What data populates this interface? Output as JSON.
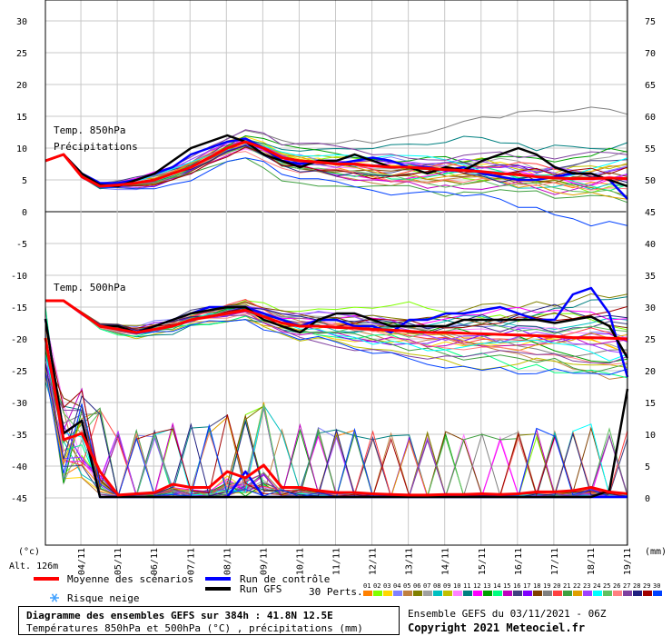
{
  "chart_data": {
    "type": "line",
    "left_axis_ticks": [
      "30",
      "25",
      "20",
      "15",
      "10",
      "5",
      "0",
      "-5",
      "-10",
      "-15",
      "-20",
      "-25",
      "-30",
      "-35",
      "-40",
      "-45"
    ],
    "right_axis_ticks": [
      "75",
      "70",
      "65",
      "60",
      "55",
      "50",
      "45",
      "40",
      "35",
      "30",
      "25",
      "20",
      "15",
      "10",
      "5",
      "0"
    ],
    "left_unit": "(°c)",
    "right_unit": "(mm)",
    "altitude": "Alt. 126m",
    "x_ticks": [
      "04/11",
      "05/11",
      "06/11",
      "07/11",
      "08/11",
      "09/11",
      "10/11",
      "11/11",
      "12/11",
      "13/11",
      "14/11",
      "15/11",
      "16/11",
      "17/11",
      "18/11",
      "19/11"
    ],
    "label_t850": "Temp. 850hPa",
    "label_precip": "Précipitations",
    "label_t500": "Temp. 500hPa",
    "ylim": [
      -45,
      30
    ],
    "x": [
      0,
      12,
      24,
      36,
      48,
      60,
      72,
      84,
      96,
      108,
      120,
      132,
      144,
      156,
      168,
      180,
      192,
      204,
      216,
      228,
      240,
      252,
      264,
      276,
      288,
      300,
      312,
      324,
      336,
      348,
      360,
      372,
      384
    ],
    "series": [
      {
        "name": "Moyenne des scénarios",
        "color": "#ff0000",
        "group": "t850",
        "values": [
          8,
          9,
          5.5,
          4,
          4.2,
          4.5,
          5,
          6,
          7,
          8.5,
          10,
          11,
          10,
          8.5,
          8,
          7.8,
          7.5,
          7.5,
          7.2,
          7,
          7,
          6.8,
          6.6,
          6.5,
          6.3,
          6,
          5.8,
          5.5,
          5.3,
          5.2,
          5.2,
          5.3,
          5.2
        ]
      },
      {
        "name": "Run de contrôle",
        "color": "#0000ff",
        "group": "t850",
        "values": [
          8,
          9,
          6,
          4.5,
          4.5,
          5,
          6,
          7,
          9,
          10,
          11,
          11.5,
          10,
          8,
          7.5,
          8,
          7.5,
          8,
          8.5,
          8,
          7,
          7,
          6.5,
          7,
          6,
          5.5,
          5,
          5,
          5.5,
          6,
          6,
          5,
          2
        ]
      },
      {
        "name": "Run GFS",
        "color": "#000000",
        "group": "t850",
        "values": [
          8,
          9,
          6,
          4.2,
          4,
          5,
          6,
          8,
          10,
          11,
          12,
          11,
          9,
          8,
          7,
          8,
          8,
          9,
          8,
          7,
          7,
          6,
          7,
          6.5,
          8,
          9,
          10,
          9,
          7,
          6,
          6,
          5,
          4
        ]
      },
      {
        "name": "Moyenne des scénarios",
        "color": "#ff0000",
        "group": "t500",
        "values": [
          -14,
          -14,
          -16,
          -18,
          -18.5,
          -19,
          -18.5,
          -18,
          -17,
          -16.5,
          -16,
          -15.5,
          -16.5,
          -17.5,
          -18,
          -18,
          -18.2,
          -18.3,
          -18.5,
          -18.6,
          -18.8,
          -19,
          -19,
          -19.1,
          -19.2,
          -19.3,
          -19.4,
          -19.5,
          -19.6,
          -19.8,
          -19.8,
          -19.9,
          -20
        ]
      },
      {
        "name": "Run de contrôle",
        "color": "#0000ff",
        "group": "t500",
        "values": [
          -14,
          -14,
          -16,
          -18,
          -18.5,
          -19,
          -18,
          -17,
          -16,
          -15,
          -15,
          -15,
          -16,
          -17,
          -18,
          -17,
          -17,
          -18,
          -18,
          -19,
          -17,
          -17,
          -16,
          -16,
          -15.5,
          -15,
          -16,
          -17,
          -17,
          -13,
          -12,
          -16,
          -26
        ]
      },
      {
        "name": "Run GFS",
        "color": "#000000",
        "group": "t500",
        "values": [
          -14,
          -14,
          -16,
          -18,
          -18,
          -19,
          -18,
          -17,
          -16,
          -15.5,
          -15,
          -15,
          -17,
          -18,
          -19,
          -17,
          -16,
          -16,
          -17,
          -18,
          -18,
          -18,
          -18,
          -17,
          -17,
          -17,
          -17,
          -17,
          -17.5,
          -17,
          -16.5,
          -18,
          -23
        ]
      },
      {
        "name": "Moyenne des scénarios",
        "color": "#ff0000",
        "group": "precip_mm",
        "values": [
          25,
          9,
          10,
          4,
          0.3,
          0.5,
          0.7,
          2,
          1.5,
          1.5,
          4,
          3,
          5,
          1.5,
          1.5,
          1,
          0.7,
          0.7,
          0.5,
          0.4,
          0.3,
          0.3,
          0.4,
          0.4,
          0.5,
          0.4,
          0.5,
          0.8,
          0.8,
          1,
          1.5,
          0.8,
          0.5
        ]
      },
      {
        "name": "Run de contrôle",
        "color": "#0000ff",
        "group": "precip_mm",
        "values": [
          28,
          10,
          12,
          0,
          0,
          0,
          0,
          0,
          0,
          0,
          0,
          4,
          0,
          0,
          0,
          0,
          0,
          0,
          0,
          0,
          0,
          0,
          0,
          0,
          0,
          0,
          0,
          0,
          0,
          0,
          0,
          0,
          0
        ]
      },
      {
        "name": "Run GFS",
        "color": "#000000",
        "group": "precip_mm",
        "values": [
          28,
          10,
          12,
          0,
          0,
          0,
          0,
          0,
          0,
          0,
          0,
          0,
          0,
          0,
          0,
          0,
          0,
          0,
          0,
          0,
          0,
          0,
          0,
          0,
          0,
          0,
          0,
          0,
          0,
          0,
          0,
          1,
          17
        ]
      }
    ],
    "legend": {
      "mean": "Moyenne des scénarios",
      "control": "Run de contrôle",
      "gfs": "Run GFS",
      "snow": "Risque neige",
      "perts": "30 Perts.",
      "pert_numbers": [
        "01",
        "02",
        "03",
        "04",
        "05",
        "06",
        "07",
        "08",
        "09",
        "10",
        "11",
        "12",
        "13",
        "14",
        "15",
        "16",
        "17",
        "18",
        "19",
        "20",
        "21",
        "22",
        "23",
        "24",
        "25",
        "26",
        "27",
        "28",
        "29",
        "30"
      ],
      "pert_colors": [
        "#ff8000",
        "#80ff00",
        "#ffd700",
        "#8080ff",
        "#c08040",
        "#808000",
        "#a0a0a0",
        "#00c0c0",
        "#c0c000",
        "#ff80ff",
        "#008080",
        "#ff00ff",
        "#00a000",
        "#00ff80",
        "#c000c0",
        "#404080",
        "#8000ff",
        "#804000",
        "#808080",
        "#ff4040",
        "#40a040",
        "#e0a000",
        "#a040ff",
        "#00ffff",
        "#60c060",
        "#ff8080",
        "#8040a0",
        "#202080",
        "#a00000",
        "#0040ff"
      ]
    },
    "grid": true
  },
  "footer": {
    "title": "Diagramme des ensembles GEFS sur 384h : 41.8N 12.5E",
    "subtitle": "Températures 850hPa et 500hPa (°C) , précipitations (mm)",
    "ensemble": "Ensemble GEFS du 03/11/2021 - 06Z",
    "copyright": "Copyright 2021 Meteociel.fr"
  }
}
